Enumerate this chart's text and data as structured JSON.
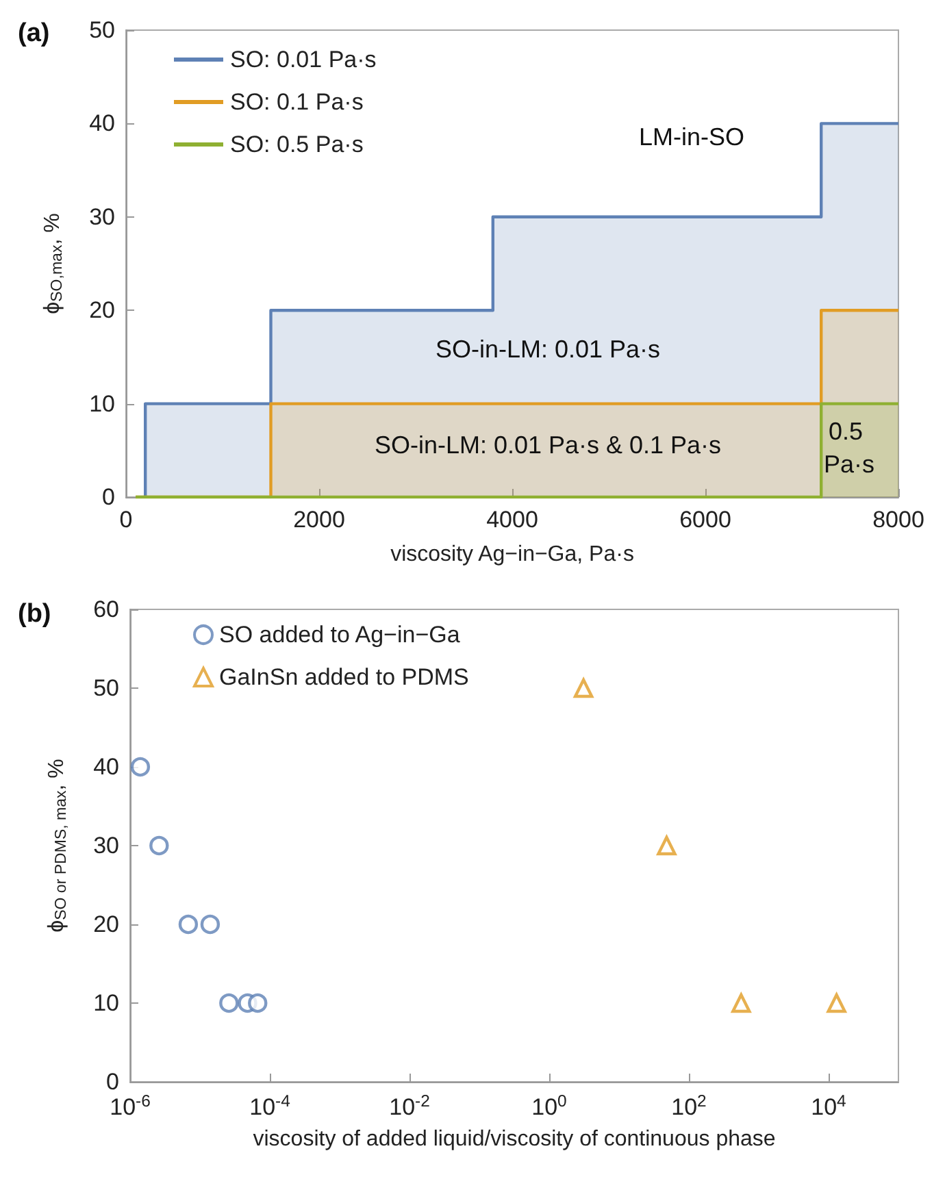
{
  "chart_data": [
    {
      "type": "area",
      "title": "(a)",
      "xlabel": "viscosity Ag−in−Ga, Pa·s",
      "ylabel": "ϕ$_{SO,max}$, %",
      "series": [
        {
          "name": "SO: 0.01 Pa·s",
          "color": "#5e81b5",
          "x": [
            200,
            200,
            1500,
            1500,
            3800,
            3800,
            7200,
            7200,
            8000
          ],
          "values": [
            0,
            10,
            10,
            20,
            20,
            30,
            30,
            40,
            40
          ]
        },
        {
          "name": "SO: 0.1 Pa·s",
          "color": "#e19c24",
          "x": [
            100,
            1500,
            1500,
            7200,
            7200,
            8000
          ],
          "values": [
            0,
            0,
            10,
            10,
            20,
            20
          ]
        },
        {
          "name": "SO: 0.5 Pa·s",
          "color": "#8fb032",
          "x": [
            100,
            7200,
            7200,
            8000
          ],
          "values": [
            0,
            0,
            10,
            10
          ]
        }
      ],
      "annotations": [
        "LM-in-SO",
        "SO-in-LM: 0.01 Pa·s",
        "SO-in-LM: 0.01 Pa·s & 0.1 Pa·s",
        "0.5 Pa·s"
      ],
      "xlim": [
        0,
        8000
      ],
      "xticks": [
        0,
        2000,
        4000,
        6000,
        8000
      ],
      "ylim": [
        0,
        50
      ],
      "yticks": [
        0,
        10,
        20,
        30,
        40,
        50
      ],
      "grid": false,
      "legend": "top left",
      "line_style": "solid",
      "marker": "none"
    },
    {
      "type": "scatter",
      "title": "(b)",
      "xlabel": "viscosity of added liquid/viscosity of continuous phase",
      "ylabel": "ϕ$_{SO or PDMS, max}$, %",
      "series": [
        {
          "name": "SO added to Ag−in−Ga",
          "color": "#5e81b5",
          "marker": "circle",
          "x": [
            1.4e-06,
            2.6e-06,
            6.8e-06,
            1.4e-05,
            2.6e-05,
            4.8e-05,
            6.7e-05
          ],
          "values": [
            40,
            30,
            20,
            20,
            10,
            10,
            10
          ]
        },
        {
          "name": "GaInSn added to PDMS",
          "color": "#e19c24",
          "marker": "triangle",
          "x": [
            3.1,
            48,
            560,
            13000
          ],
          "values": [
            50,
            30,
            10,
            10
          ]
        }
      ],
      "log": "x",
      "xlim": [
        1e-06,
        100000.0
      ],
      "xticks": [
        {
          "value": 1e-06,
          "label": "10$^{-6}$"
        },
        {
          "value": 0.0001,
          "label": "10$^{-4}$"
        },
        {
          "value": 0.01,
          "label": "10$^{-2}$"
        },
        {
          "value": 1,
          "label": "10$^{0}$"
        },
        {
          "value": 100,
          "label": "10$^{2}$"
        },
        {
          "value": 10000,
          "label": "10$^{4}$"
        }
      ],
      "ylim": [
        0,
        60
      ],
      "yticks": [
        0,
        10,
        20,
        30,
        40,
        50,
        60
      ],
      "grid": false,
      "legend": "top left"
    }
  ]
}
